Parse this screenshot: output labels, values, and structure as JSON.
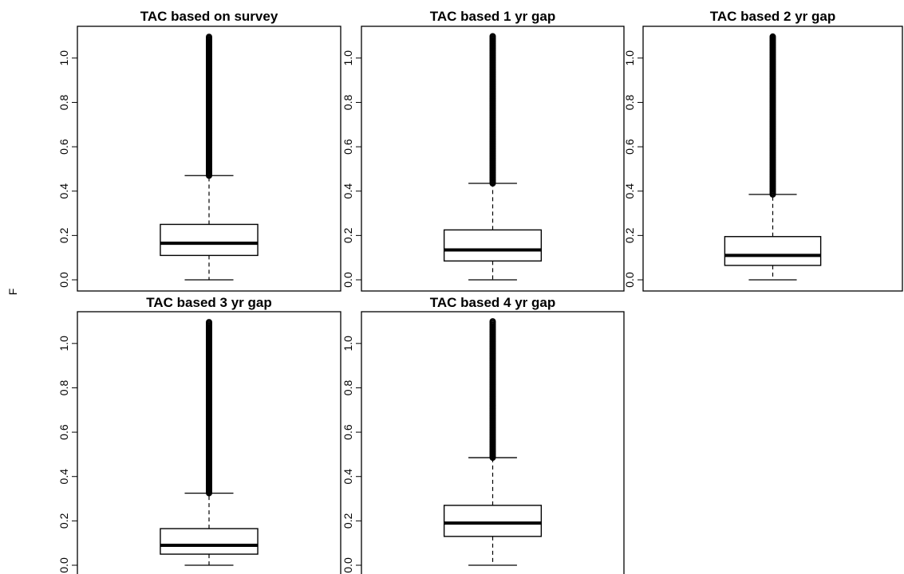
{
  "ylabel": "F",
  "chart_data": [
    {
      "type": "boxplot",
      "title": "TAC based on survey",
      "ylim": [
        0,
        1.1
      ],
      "yticks": [
        "0.0",
        "0.2",
        "0.4",
        "0.6",
        "0.8",
        "1.0"
      ],
      "stats": {
        "min": 0.0,
        "q1": 0.11,
        "median": 0.165,
        "q3": 0.25,
        "upper_whisker": 0.47,
        "outliers_to": 1.1
      }
    },
    {
      "type": "boxplot",
      "title": "TAC based 1 yr gap",
      "ylim": [
        0,
        1.1
      ],
      "yticks": [
        "0.0",
        "0.2",
        "0.4",
        "0.6",
        "0.8",
        "1.0"
      ],
      "stats": {
        "min": 0.0,
        "q1": 0.085,
        "median": 0.135,
        "q3": 0.225,
        "upper_whisker": 0.435,
        "outliers_to": 1.1
      }
    },
    {
      "type": "boxplot",
      "title": "TAC based 2 yr gap",
      "ylim": [
        0,
        1.1
      ],
      "yticks": [
        "0.0",
        "0.2",
        "0.4",
        "0.6",
        "0.8",
        "1.0"
      ],
      "stats": {
        "min": 0.0,
        "q1": 0.065,
        "median": 0.11,
        "q3": 0.195,
        "upper_whisker": 0.385,
        "outliers_to": 1.1
      }
    },
    {
      "type": "boxplot",
      "title": "TAC based 3 yr gap",
      "ylim": [
        0,
        1.1
      ],
      "yticks": [
        "0.0",
        "0.2",
        "0.4",
        "0.6",
        "0.8",
        "1.0"
      ],
      "stats": {
        "min": 0.0,
        "q1": 0.05,
        "median": 0.09,
        "q3": 0.165,
        "upper_whisker": 0.325,
        "outliers_to": 1.1
      }
    },
    {
      "type": "boxplot",
      "title": "TAC based 4 yr gap",
      "ylim": [
        0,
        1.1
      ],
      "yticks": [
        "0.0",
        "0.2",
        "0.4",
        "0.6",
        "0.8",
        "1.0"
      ],
      "stats": {
        "min": 0.0,
        "q1": 0.13,
        "median": 0.19,
        "q3": 0.27,
        "upper_whisker": 0.485,
        "outliers_to": 1.1
      }
    }
  ]
}
